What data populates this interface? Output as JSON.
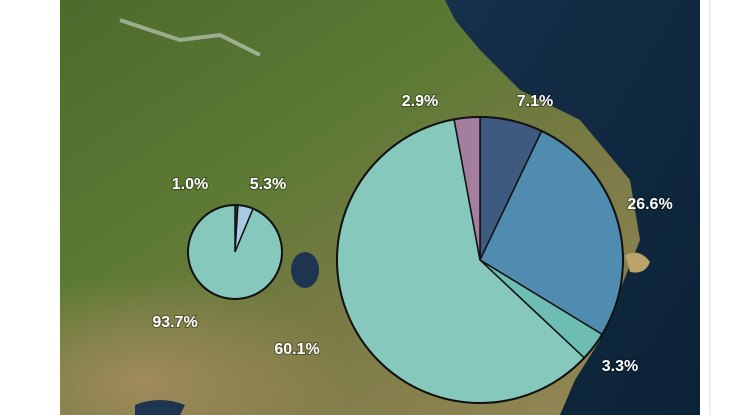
{
  "chart_data": [
    {
      "type": "pie",
      "values": [
        1.0,
        5.3,
        93.7
      ],
      "value_labels": [
        "1.0%",
        "5.3%",
        "93.7%"
      ],
      "colors": [
        "#2a3550",
        "#a9c9e3",
        "#86c8bc"
      ]
    },
    {
      "type": "pie",
      "values": [
        7.1,
        26.6,
        3.3,
        60.1,
        2.9
      ],
      "value_labels": [
        "7.1%",
        "26.6%",
        "3.3%",
        "60.1%",
        "2.9%"
      ],
      "colors": [
        "#3e5a7e",
        "#4f8cb0",
        "#6dbdb2",
        "#86c8bc",
        "#a47e9e"
      ]
    }
  ]
}
